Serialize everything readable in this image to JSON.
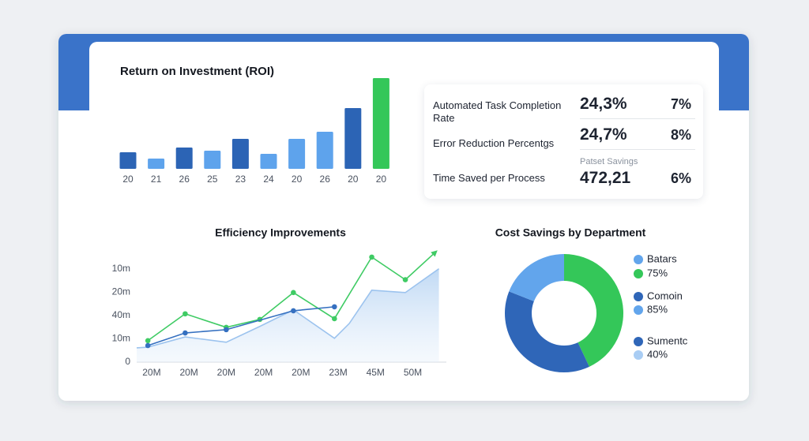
{
  "chart_data": [
    {
      "type": "bar",
      "title": "Return on Investment (ROI)",
      "categories": [
        "20",
        "21",
        "26",
        "25",
        "23",
        "24",
        "20",
        "26",
        "20",
        "20"
      ],
      "values": [
        21,
        13,
        27,
        23,
        38,
        19,
        38,
        47,
        77,
        115
      ],
      "colors": [
        "#2c64b5",
        "#5ea3ec",
        "#2c64b5",
        "#5ea3ec",
        "#2c64b5",
        "#5ea3ec",
        "#5ea3ec",
        "#5ea3ec",
        "#2c64b5",
        "#34c759"
      ],
      "ylim": [
        0,
        120
      ]
    },
    {
      "type": "line",
      "title": "Efficiency Improvements",
      "xlim": [
        -0.4,
        7.9
      ],
      "xticks": [
        {
          "value": 0,
          "label": "20M"
        },
        {
          "value": 1,
          "label": "20M"
        },
        {
          "value": 2,
          "label": "20M"
        },
        {
          "value": 3,
          "label": "20M"
        },
        {
          "value": 4,
          "label": "20M"
        },
        {
          "value": 5,
          "label": "23M"
        },
        {
          "value": 6,
          "label": "45M"
        },
        {
          "value": 7,
          "label": "50M"
        }
      ],
      "ylim": [
        0,
        48
      ],
      "yticks": [
        0,
        {
          "value": 10,
          "label": "10m"
        },
        {
          "value": 20,
          "label": "40m"
        },
        {
          "value": 30,
          "label": "20m"
        },
        {
          "value": 40,
          "label": "10m"
        }
      ],
      "series": [
        {
          "color": "#9cc3ee",
          "area": true,
          "x": [
            -0.4,
            -0.1,
            0.9,
            2.0,
            2.9,
            3.8,
            4.9,
            5.3,
            5.9,
            6.8,
            7.7
          ],
          "values": [
            6.1,
            6.4,
            10.8,
            8.5,
            15.3,
            22.4,
            10.2,
            16.6,
            30.8,
            29.8,
            40
          ]
        },
        {
          "color": "#3fcb64",
          "end_arrow": true,
          "x": [
            -0.1,
            0.9,
            2.0,
            2.9,
            3.8,
            4.9,
            5.9,
            6.8,
            7.6
          ],
          "values": [
            9.2,
            20.7,
            14.9,
            18.3,
            29.8,
            18.6,
            45,
            35.3,
            47
          ]
        },
        {
          "color": "#3570c0",
          "x": [
            -0.1,
            0.9,
            2.0,
            3.8,
            4.9
          ],
          "values": [
            7.1,
            12.5,
            13.9,
            22,
            23.7
          ]
        }
      ]
    },
    {
      "type": "pie",
      "title": "Cost Savings by Department",
      "donut": true,
      "values": [
        43,
        38,
        19
      ],
      "colors": [
        "#34c759",
        "#2f66b8",
        "#62a5ec"
      ],
      "legend": [
        {
          "label": "Batars",
          "color": "#62a5ec"
        },
        {
          "label": "75%",
          "color": "#34c759"
        },
        {
          "label": "Comoin",
          "color": "#2f66b8"
        },
        {
          "label": "85%",
          "color": "#62a5ec"
        },
        {
          "label": "Sumentc",
          "color": "#2f66b8"
        },
        {
          "label": "40%",
          "color": "#a9cdf4"
        }
      ]
    }
  ],
  "kpis": {
    "rows": [
      {
        "label": "Automated Task Completion Rate",
        "value": "24,3%",
        "change": "7%"
      },
      {
        "label": "Error Reduction Percentgs",
        "value": "24,7%",
        "change": "8%"
      },
      {
        "label": "Time Saved per Process",
        "value": "472,21",
        "change": "6%"
      }
    ],
    "note": "Patset Savings"
  }
}
